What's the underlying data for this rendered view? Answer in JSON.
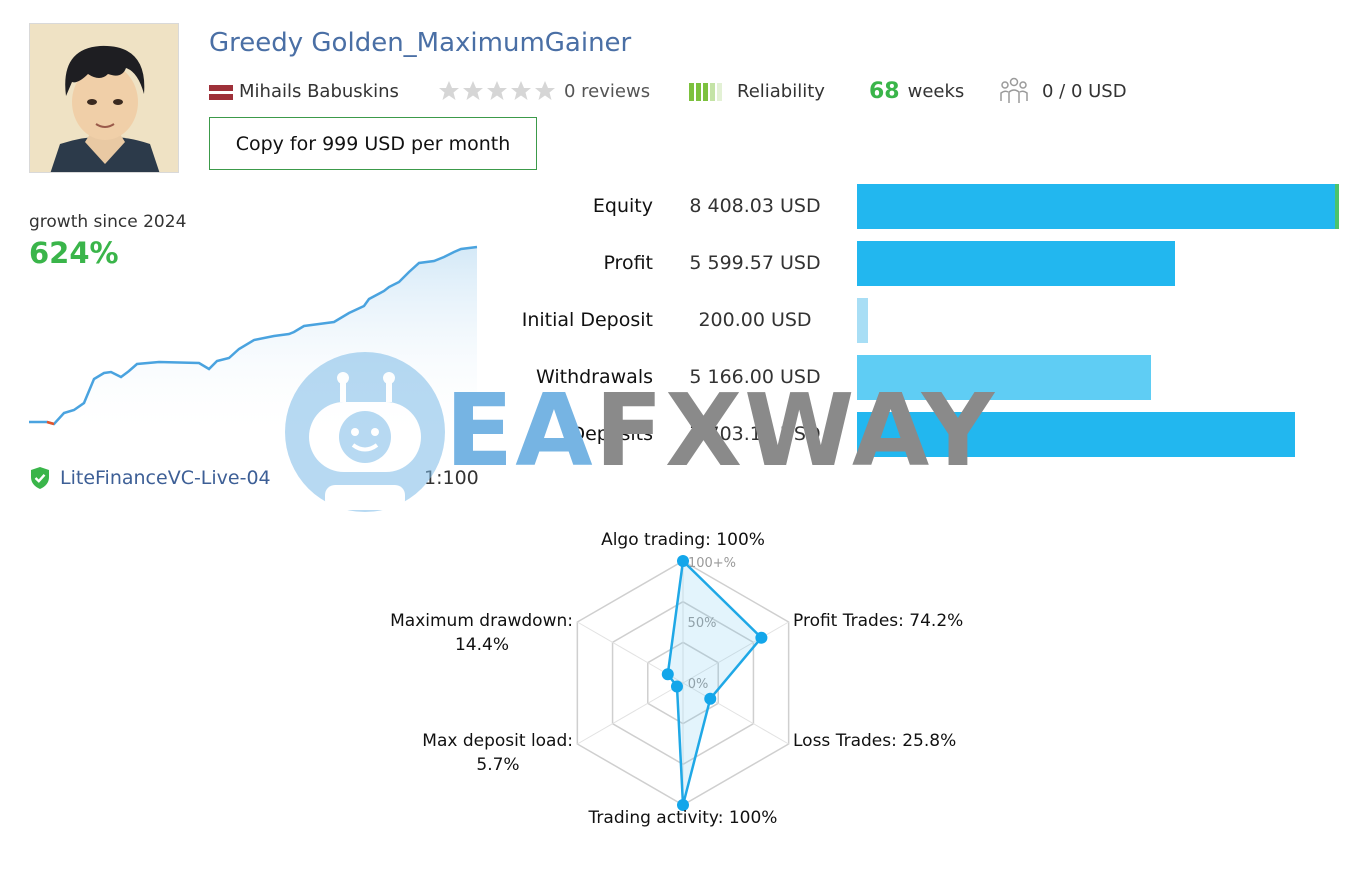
{
  "header": {
    "title": "Greedy Golden_MaximumGainer",
    "author": "Mihails Babuskins",
    "reviews": "0 reviews",
    "reliability_label": "Reliability",
    "weeks_count": "68",
    "weeks_label": "weeks",
    "subscribers": "0 / 0 USD",
    "copy_button": "Copy for 999 USD per month"
  },
  "growth": {
    "label": "growth since 2024",
    "value": "624%",
    "broker": "LiteFinanceVC-Live-04",
    "leverage": "1:100"
  },
  "stats": [
    {
      "label": "Equity",
      "value": "8 408.03 USD",
      "amount": 8408.03,
      "color": "#22b7ef"
    },
    {
      "label": "Profit",
      "value": "5 599.57 USD",
      "amount": 5599.57,
      "color": "#22b7ef"
    },
    {
      "label": "Initial Deposit",
      "value": "200.00 USD",
      "amount": 200.0,
      "color": "#a8def5"
    },
    {
      "label": "Withdrawals",
      "value": "5 166.00 USD",
      "amount": 5166.0,
      "color": "#5fcdf4"
    },
    {
      "label": "Deposits",
      "value": "7 703.18 USD",
      "amount": 7703.18,
      "color": "#22b7ef"
    }
  ],
  "watermark": {
    "part1": "EA",
    "part2": "FXWAY"
  },
  "radar": {
    "ticks": [
      "100+%",
      "50%",
      "0%"
    ],
    "axes": [
      {
        "label": "Algo trading: 100%",
        "value": 1.0
      },
      {
        "label": "Profit Trades: 74.2%",
        "value": 0.742
      },
      {
        "label": "Loss Trades: 25.8%",
        "value": 0.258
      },
      {
        "label": "Trading activity: 100%",
        "value": 1.0
      },
      {
        "label": "Max deposit load:",
        "value2": "5.7%",
        "value": 0.057
      },
      {
        "label": "Maximum drawdown:",
        "value2": "14.4%",
        "value": 0.144
      }
    ]
  },
  "colors": {
    "accent_green": "#3ab54a",
    "title_blue": "#4a6fa5",
    "bar_blue": "#22b7ef",
    "line_blue": "#4aa3df"
  }
}
